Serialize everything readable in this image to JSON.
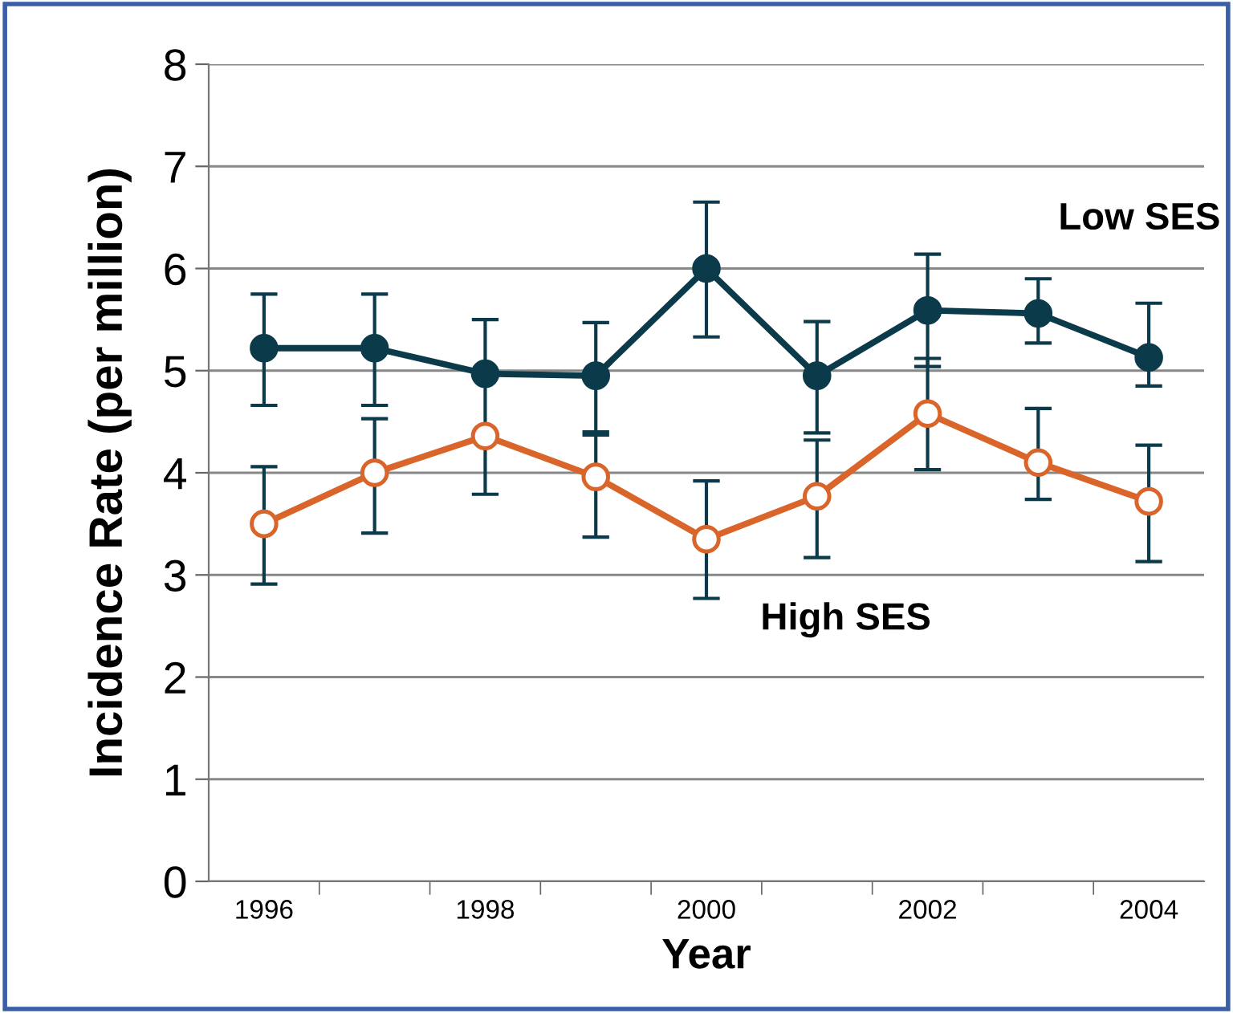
{
  "chart_data": {
    "type": "line",
    "xlabel": "Year",
    "ylabel": "Incidence Rate (per million)",
    "categories": [
      "1996",
      null,
      "1998",
      null,
      "2000",
      null,
      "2002",
      null,
      "2004"
    ],
    "series": [
      {
        "name": "Low SES",
        "color": "#0b3a4a",
        "marker": "circle",
        "values": [
          5.22,
          5.22,
          4.97,
          4.95,
          6.0,
          4.95,
          5.59,
          5.56,
          5.13
        ],
        "errors": [
          [
            4.66,
            5.75
          ],
          [
            4.66,
            5.75
          ],
          [
            3.79,
            5.5
          ],
          [
            4.4,
            5.47
          ],
          [
            5.33,
            6.65
          ],
          [
            4.39,
            5.48
          ],
          [
            5.04,
            6.14
          ],
          [
            5.27,
            5.9
          ],
          [
            4.85,
            5.66
          ]
        ]
      },
      {
        "name": "High SES",
        "color": "#d9652b",
        "marker": "circle",
        "values": [
          3.5,
          4.0,
          4.36,
          3.96,
          3.35,
          3.77,
          4.58,
          4.1,
          3.72
        ],
        "errors": [
          [
            2.91,
            4.06
          ],
          [
            3.41,
            4.53
          ],
          null,
          [
            3.37,
            4.37
          ],
          [
            2.77,
            3.92
          ],
          [
            3.17,
            4.32
          ],
          [
            4.03,
            5.12
          ],
          [
            3.74,
            4.63
          ],
          [
            3.13,
            4.27
          ]
        ]
      }
    ],
    "ylim": [
      0,
      8
    ],
    "yticks": [
      0,
      1,
      2,
      3,
      4,
      5,
      6,
      7,
      8
    ],
    "grid": "y",
    "legend": false
  }
}
